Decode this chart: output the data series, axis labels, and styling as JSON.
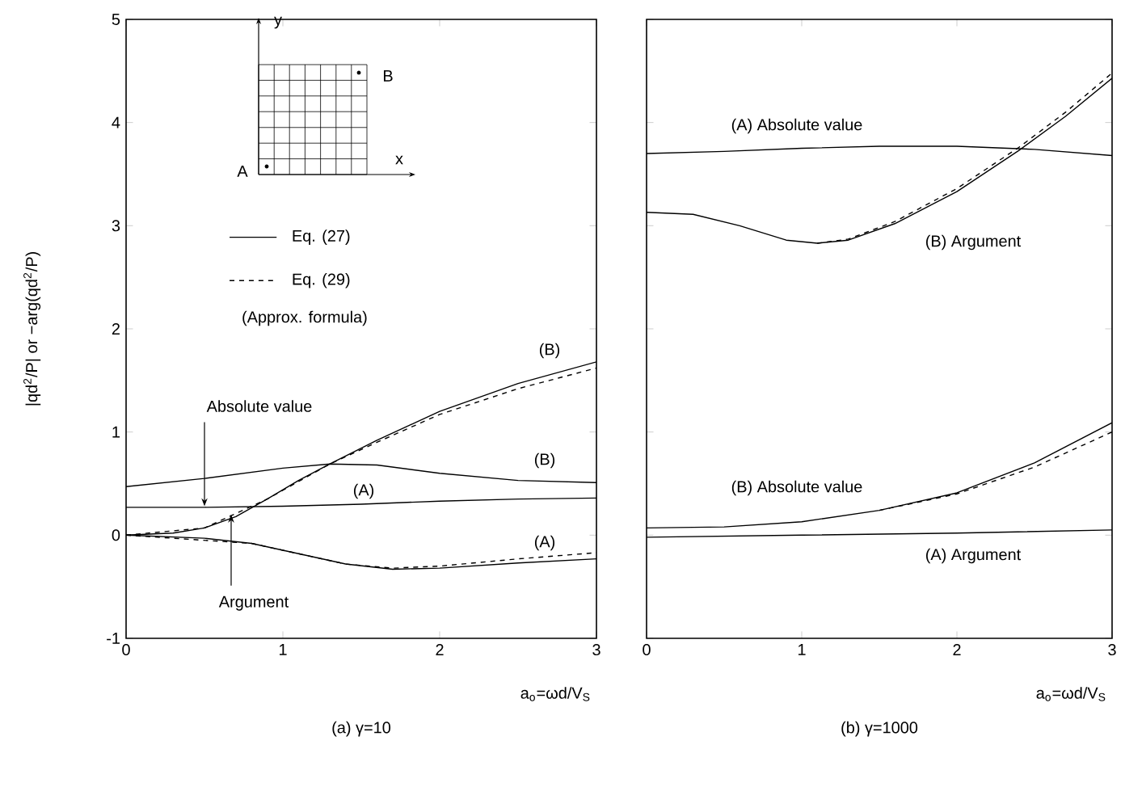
{
  "chart_data": [
    {
      "type": "line",
      "title": "(a)  γ=10",
      "xlabel": "a$_{o}$=ωd/V$_{S}$",
      "ylabel": "|qd$^{2}$/P| or −arg(qd$^{2}$/P)",
      "xlim": [
        0,
        3
      ],
      "xticks": [
        0,
        1,
        2,
        3
      ],
      "ylim": [
        -1,
        5
      ],
      "yticks": [
        -1,
        0,
        1,
        2,
        3,
        4,
        5
      ],
      "legend": "top left",
      "series": [
        {
          "name": "Eq. (27)",
          "color": "#000000",
          "line_style": "solid",
          "x": [
            0,
            0.5,
            1,
            1.5,
            2,
            2.5,
            3
          ],
          "values": [
            0.27,
            0.27,
            0.28,
            0.3,
            0.33,
            0.35,
            0.36
          ]
        },
        {
          "name": "Eq. (29)",
          "color": "#000000",
          "line_style": "dashed",
          "x": [
            0,
            0.5,
            0.9,
            1.3,
            1.6,
            2,
            2.5,
            3
          ],
          "values": [
            0,
            0.07,
            0.35,
            0.69,
            0.9,
            1.17,
            1.42,
            1.62
          ]
        },
        {
          "color": "#000000",
          "line_style": "solid",
          "x": [
            0,
            0.5,
            1,
            1.3,
            1.6,
            2,
            2.5,
            3
          ],
          "values": [
            0.47,
            0.55,
            0.65,
            0.69,
            0.68,
            0.6,
            0.53,
            0.51
          ]
        },
        {
          "color": "#000000",
          "line_style": "solid",
          "x": [
            0,
            0.3,
            0.5,
            0.7,
            0.9,
            1.1,
            1.3,
            1.6,
            2,
            2.5,
            3
          ],
          "values": [
            0,
            0.02,
            0.07,
            0.18,
            0.35,
            0.53,
            0.69,
            0.92,
            1.2,
            1.47,
            1.68
          ]
        },
        {
          "color": "#000000",
          "line_style": "solid",
          "x": [
            0,
            0.5,
            0.8,
            1.1,
            1.4,
            1.7,
            2,
            2.5,
            3
          ],
          "values": [
            0,
            -0.03,
            -0.08,
            -0.18,
            -0.28,
            -0.33,
            -0.32,
            -0.27,
            -0.23
          ]
        },
        {
          "color": "#000000",
          "line_style": "dashed",
          "x": [
            0,
            0.8,
            1.4,
            1.7,
            2,
            2.5,
            3
          ],
          "values": [
            0,
            -0.08,
            -0.28,
            -0.32,
            -0.3,
            -0.23,
            -0.17
          ]
        }
      ],
      "annotations": [
        "(B)",
        "(B)",
        "(A)",
        "(A)",
        {
          "text": "Absolute value",
          "x": 0.5,
          "y": 0.28
        },
        {
          "text": "Argument",
          "x": 0.67,
          "y": 0.2
        },
        "A",
        "B",
        "x",
        "y",
        "(Approx. formula)"
      ]
    },
    {
      "type": "line",
      "title": "(b)  γ=1000",
      "xlabel": "a$_{o}$=ωd/V$_{S}$",
      "xlim": [
        0,
        3
      ],
      "xticks": [
        0,
        1,
        2,
        3
      ],
      "ylim": [
        -1,
        5
      ],
      "yticks": [
        -1,
        0,
        1,
        2,
        3,
        4,
        5
      ],
      "tick_labels": "x",
      "series": [
        {
          "color": "#000000",
          "line_style": "solid",
          "x": [
            0,
            0.5,
            1,
            1.5,
            2,
            2.5,
            3
          ],
          "values": [
            3.7,
            3.72,
            3.75,
            3.77,
            3.77,
            3.74,
            3.68
          ]
        },
        {
          "color": "#000000",
          "line_style": "solid",
          "x": [
            0,
            0.3,
            0.6,
            0.9,
            1.1,
            1.3,
            1.6,
            2,
            2.4,
            2.7,
            3
          ],
          "values": [
            3.13,
            3.11,
            3.0,
            2.86,
            2.83,
            2.86,
            3.02,
            3.33,
            3.73,
            4.06,
            4.43
          ]
        },
        {
          "color": "#000000",
          "line_style": "dashed",
          "x": [
            1.1,
            1.3,
            1.6,
            2,
            2.4,
            2.7,
            3
          ],
          "values": [
            2.83,
            2.87,
            3.04,
            3.36,
            3.76,
            4.1,
            4.48
          ]
        },
        {
          "color": "#000000",
          "line_style": "solid",
          "x": [
            0,
            0.5,
            1,
            1.5,
            2,
            2.5,
            3
          ],
          "values": [
            0.07,
            0.08,
            0.13,
            0.24,
            0.41,
            0.7,
            1.09
          ]
        },
        {
          "color": "#000000",
          "line_style": "dashed",
          "x": [
            1.5,
            2,
            2.5,
            3
          ],
          "values": [
            0.24,
            0.4,
            0.66,
            1.0
          ]
        },
        {
          "color": "#000000",
          "line_style": "solid",
          "x": [
            0,
            1,
            2,
            3
          ],
          "values": [
            -0.02,
            0,
            0.02,
            0.05
          ]
        }
      ],
      "annotations": [
        "(A) Absolute value",
        "(B) Argument",
        "(B) Absolute value",
        "(A) Argument"
      ]
    }
  ]
}
